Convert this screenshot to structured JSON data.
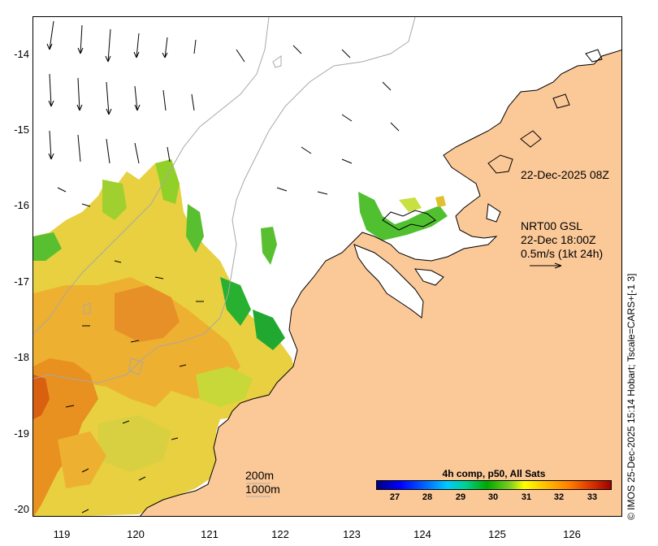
{
  "map": {
    "y_axis_labels": [
      "-14",
      "-15",
      "-16",
      "-17",
      "-18",
      "-19",
      "-20"
    ],
    "x_axis_labels": [
      "119",
      "120",
      "121",
      "122",
      "123",
      "124",
      "125",
      "126"
    ],
    "annotation_timestamp": "22-Dec-2025 08Z",
    "legend": {
      "line1": "NRT00 GSL",
      "line2": "22-Dec 18:00Z",
      "line3": "0.5m/s (1kt 24h)"
    },
    "contours": {
      "label_200": "200m",
      "label_1000": "1000m"
    },
    "colorbar": {
      "title": "4h comp, p50, All Sats",
      "ticks": [
        "27",
        "28",
        "29",
        "30",
        "31",
        "32",
        "33"
      ]
    },
    "credit": "© IMOS 25-Dec-2025 15:14 Hobart; Tscale=CARS+[-1 3]",
    "colors": {
      "land": "#fbc898",
      "coast": "#000000",
      "bathy": "#a8a8a8"
    }
  }
}
